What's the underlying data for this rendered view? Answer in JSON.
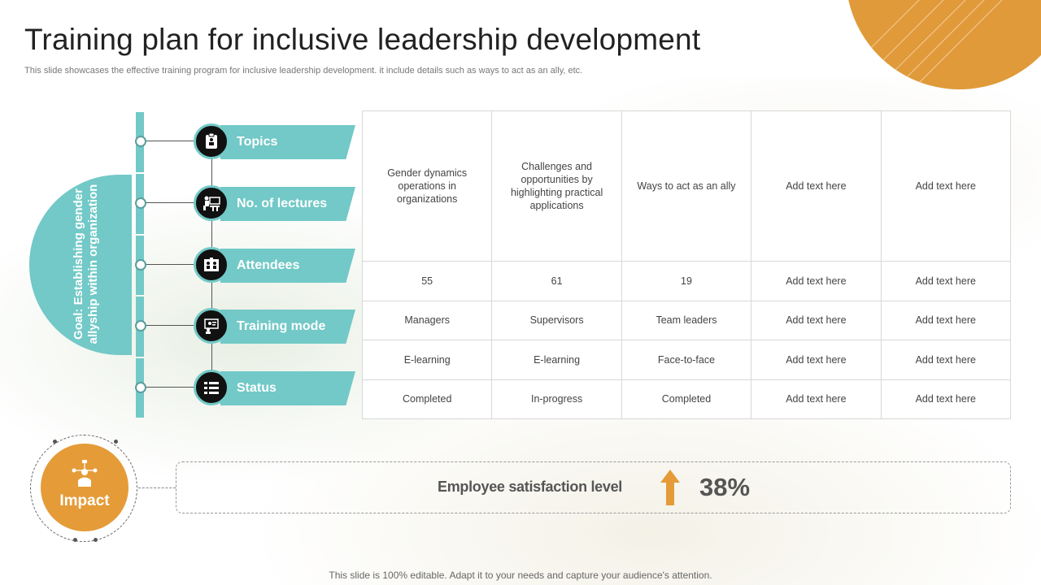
{
  "page": {
    "title": "Training plan for inclusive leadership development",
    "subtitle": "This slide showcases the effective training program for inclusive leadership development. it include details such as ways to act as an ally, etc.",
    "footer": "This slide is 100% editable. Adapt it to your needs and capture your audience's attention."
  },
  "goal": {
    "text": "Goal: Establishing gender allyship within organization"
  },
  "rows": [
    {
      "label": "Topics",
      "icon": "clipboard-icon",
      "cells": [
        "Gender dynamics operations in organizations",
        "Challenges and opportunities by highlighting practical applications",
        "Ways to act as an ally",
        "Add text here",
        "Add text here"
      ]
    },
    {
      "label": "No. of lectures",
      "icon": "lecture-desk-icon",
      "cells": [
        "55",
        "61",
        "19",
        "Add text here",
        "Add text here"
      ]
    },
    {
      "label": "Attendees",
      "icon": "team-board-icon",
      "cells": [
        "Managers",
        "Supervisors",
        "Team leaders",
        "Add text here",
        "Add text here"
      ]
    },
    {
      "label": "Training mode",
      "icon": "presentation-person-icon",
      "cells": [
        "E-learning",
        "E-learning",
        "Face-to-face",
        "Add text here",
        "Add text here"
      ]
    },
    {
      "label": "Status",
      "icon": "checklist-icon",
      "cells": [
        "Completed",
        "In-progress",
        "Completed",
        "Add text here",
        "Add text here"
      ]
    }
  ],
  "impact": {
    "label": "Impact",
    "icon": "network-person-icon",
    "metric_label": "Employee satisfaction level",
    "trend_icon": "arrow-up-icon",
    "value": "38%"
  },
  "colors": {
    "teal": "#72c9c7",
    "orange": "#e49b38"
  }
}
